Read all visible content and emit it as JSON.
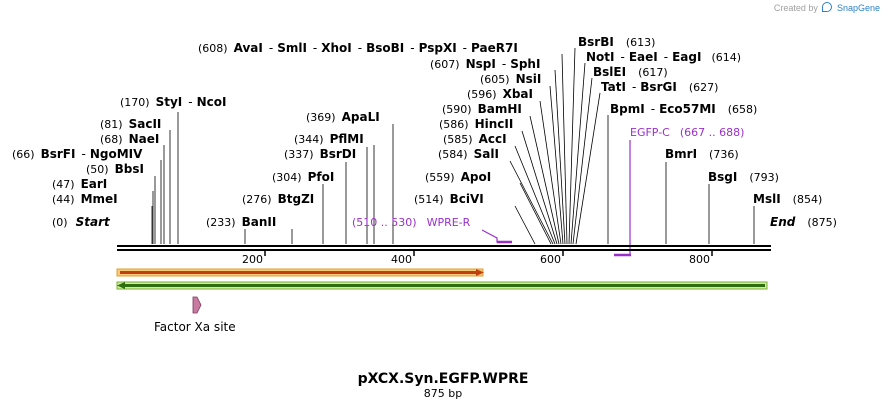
{
  "credit": {
    "prefix": "Created by",
    "brand": "SnapGene",
    "icon": "snapgene-logo-icon"
  },
  "plasmid": {
    "name": "pXCX.Syn.EGFP.WPRE",
    "length_label": "875 bp",
    "length": 875
  },
  "axis": {
    "ticks": [
      {
        "pos": 200,
        "label": "200"
      },
      {
        "pos": 400,
        "label": "400"
      },
      {
        "pos": 600,
        "label": "600"
      },
      {
        "pos": 800,
        "label": "800"
      }
    ]
  },
  "ends": [
    {
      "label": "Start",
      "pos_label": "(0)"
    },
    {
      "label": "End",
      "pos_label": "(875)"
    }
  ],
  "sites": [
    {
      "label": "(0) Start"
    },
    {
      "label": "(44) MmeI"
    },
    {
      "label": "(47) EarI"
    },
    {
      "label": "(50) BbsI"
    },
    {
      "label": "(66) BsrFI - NgoMIV"
    },
    {
      "label": "(68) NaeI"
    },
    {
      "label": "(81) SacII"
    },
    {
      "label": "(170) StyI - NcoI"
    },
    {
      "label": "(233) BanII"
    },
    {
      "label": "(276) BtgZI"
    },
    {
      "label": "(304) PfoI"
    },
    {
      "label": "(337) BsrDI"
    },
    {
      "label": "(344) PflMI"
    },
    {
      "label": "(369) ApaLI"
    },
    {
      "label": "(514) BciVI"
    },
    {
      "label": "(559) ApoI"
    },
    {
      "label": "(584) SalI"
    },
    {
      "label": "(585) AccI"
    },
    {
      "label": "(586) HincII"
    },
    {
      "label": "(590) BamHI"
    },
    {
      "label": "(596) XbaI"
    },
    {
      "label": "(605) NsiI"
    },
    {
      "label": "(607) NspI - SphI"
    },
    {
      "label": "(608) AvaI - SmlI - XhoI - BsoBI - PspXI - PaeR7I"
    },
    {
      "label": "BsrBI (613)"
    },
    {
      "label": "NotI - EaeI - EagI (614)"
    },
    {
      "label": "BslEI (617)"
    },
    {
      "label": "TatI - BsrGI (627)"
    },
    {
      "label": "BpmI - Eco57MI (658)"
    },
    {
      "label": "BmrI (736)"
    },
    {
      "label": "BsgI (793)"
    },
    {
      "label": "MslI (854)"
    },
    {
      "label": "End (875)"
    }
  ],
  "primers": [
    {
      "name": "WPRE-R",
      "range": "(510 .. 530)",
      "color": "#9b30c8"
    },
    {
      "name": "EGFP-C",
      "range": "(667 .. 688)",
      "color": "#9b30c8"
    }
  ],
  "features": [
    {
      "name": "orange-arrow-feature",
      "color": "#f5a623"
    },
    {
      "name": "green-arrow-feature",
      "color": "#7ed321"
    },
    {
      "name": "Factor Xa site",
      "color": "#c97aa0"
    }
  ]
}
